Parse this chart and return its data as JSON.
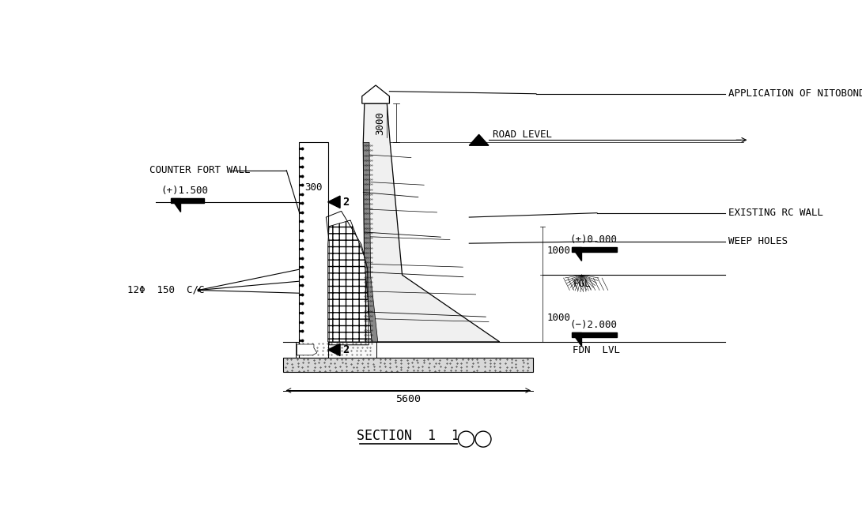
{
  "bg_color": "#ffffff",
  "title": "SECTION  1  1",
  "fig_width": 10.9,
  "fig_height": 6.56,
  "labels": {
    "application_nitobond": "APPLICATION OF NITOBOND EP",
    "road_level": "ROAD LEVEL",
    "counter_fort_wall": "COUNTER FORT WALL",
    "existing_rc_wall": "EXISTING RC WALL",
    "weep_holes": "WEEP HOLES",
    "fgl": "FGL",
    "fdn_lvl": "FDN  LVL",
    "plus_1500": "(+)1.500",
    "plus_minus_0": "(±)0.000",
    "minus_2000": "(−)2.000",
    "dim_3000": "3000",
    "dim_300": "300",
    "dim_1000a": "1000",
    "dim_1000b": "1000",
    "dim_5600": "5600",
    "rebar": "12Φ  150  C/C",
    "slope_2a": "2",
    "slope_2b": "2"
  }
}
